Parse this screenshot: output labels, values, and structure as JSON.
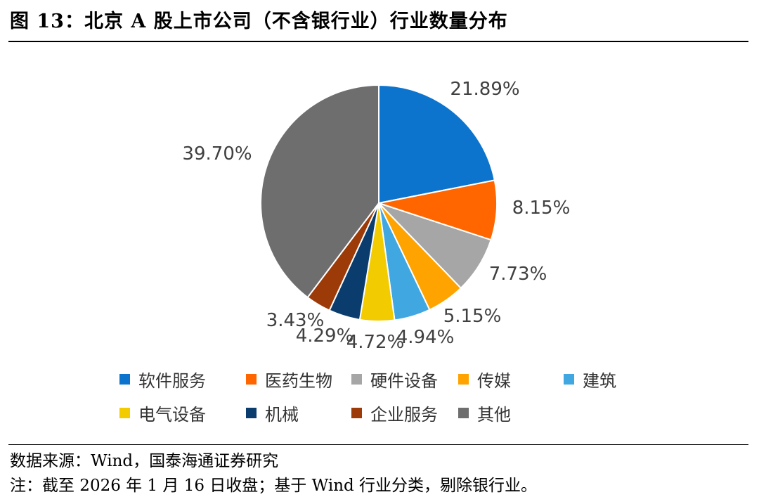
{
  "figure": {
    "title": "图 13：北京 A 股上市公司（不含银行业）行业数量分布",
    "source": "数据来源：Wind，国泰海通证券研究",
    "note": "注：截至 2026 年 1 月 16 日收盘；基于 Wind 行业分类，剔除银行业。"
  },
  "chart_data": {
    "type": "pie",
    "title": "",
    "start_angle": "12 o'clock",
    "direction": "clockwise",
    "legend_position": "bottom",
    "slices": [
      {
        "label": "软件服务",
        "value": 21.89,
        "value_label": "21.89%",
        "color": "#0D74CE"
      },
      {
        "label": "医药生物",
        "value": 8.15,
        "value_label": "8.15%",
        "color": "#FF6600"
      },
      {
        "label": "硬件设备",
        "value": 7.73,
        "value_label": "7.73%",
        "color": "#A6A6A6"
      },
      {
        "label": "传媒",
        "value": 5.15,
        "value_label": "5.15%",
        "color": "#FFA300"
      },
      {
        "label": "建筑",
        "value": 4.94,
        "value_label": "4.94%",
        "color": "#41A7E0"
      },
      {
        "label": "电气设备",
        "value": 4.72,
        "value_label": "4.72%",
        "color": "#F2CC00"
      },
      {
        "label": "机械",
        "value": 4.29,
        "value_label": "4.29%",
        "color": "#0A3D6E"
      },
      {
        "label": "企业服务",
        "value": 3.43,
        "value_label": "3.43%",
        "color": "#9C3A08"
      },
      {
        "label": "其他",
        "value": 39.7,
        "value_label": "39.70%",
        "color": "#6E6E6E"
      }
    ]
  }
}
